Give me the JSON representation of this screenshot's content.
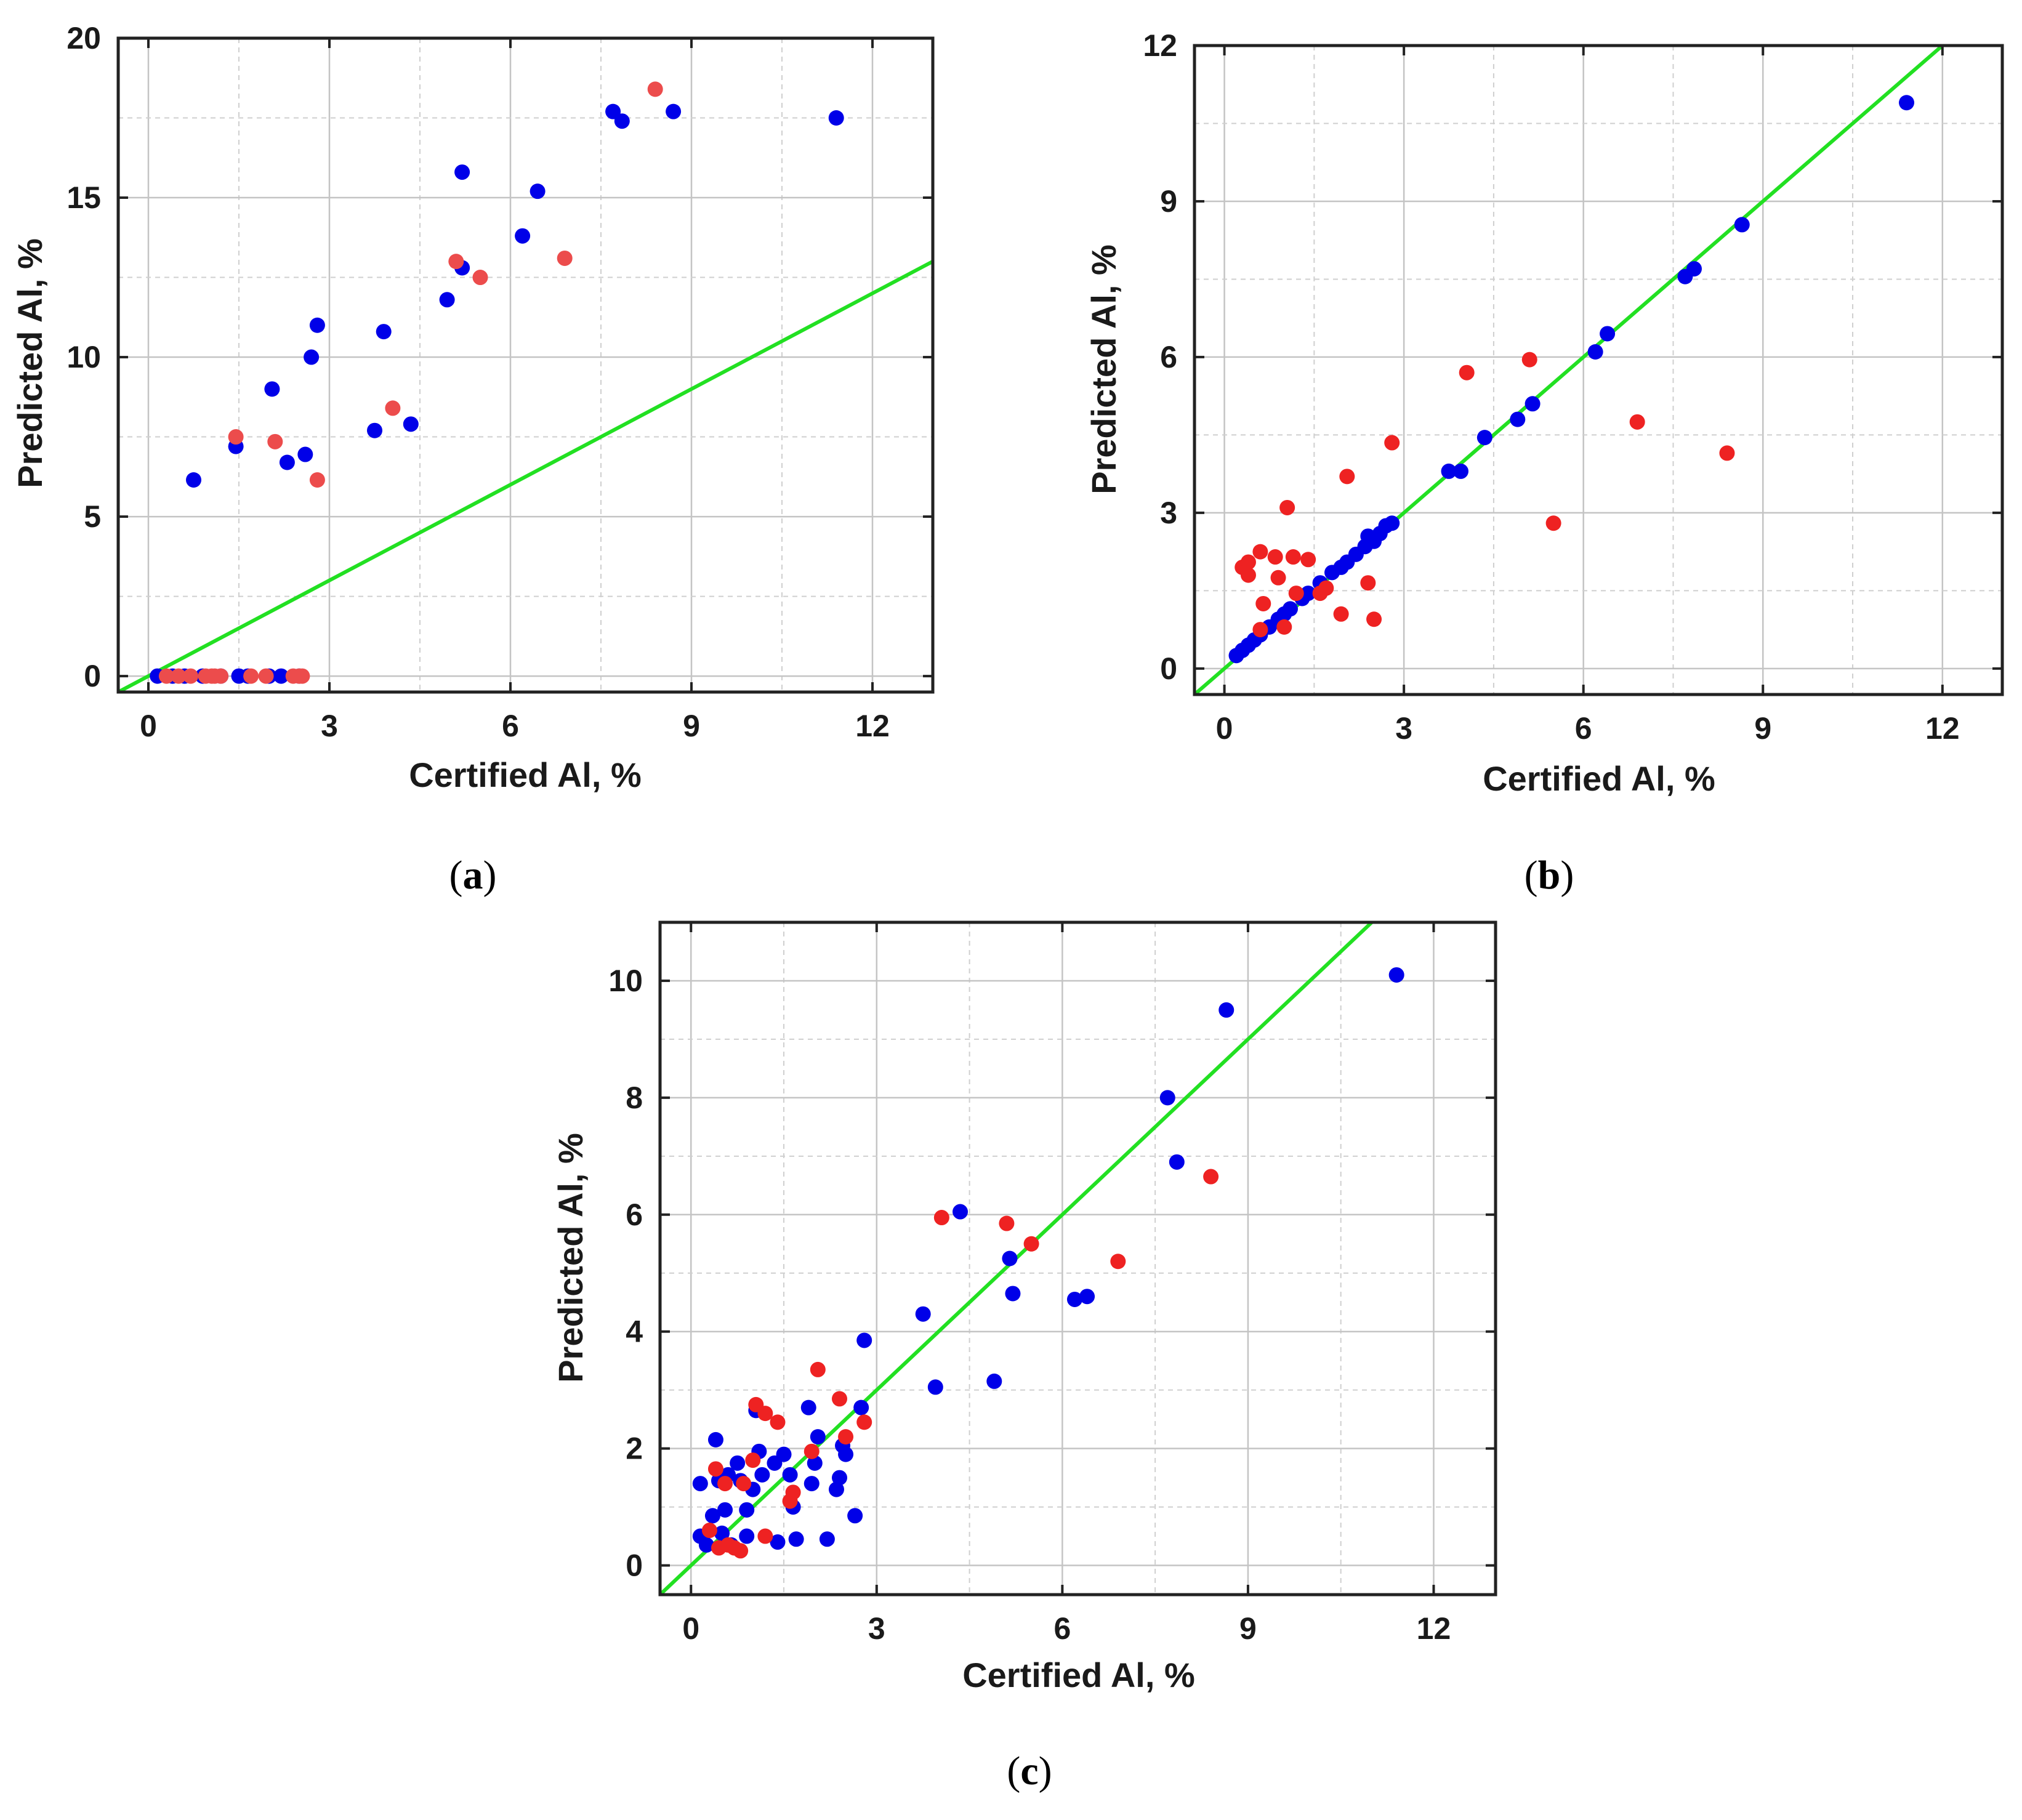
{
  "colors": {
    "blue": "#0000e8",
    "red": "#ee2222",
    "redSoft": "#ec4c4c",
    "line": "#22e022"
  },
  "chart_data": [
    {
      "panel": "a",
      "type": "scatter",
      "xlabel": "Certified Al, %",
      "ylabel": "Predicted Al, %",
      "xlim": [
        -0.5,
        13
      ],
      "ylim": [
        -0.5,
        20
      ],
      "xticks": [
        0,
        3,
        6,
        9,
        12
      ],
      "yticks": [
        0,
        5,
        10,
        15,
        20
      ],
      "xtick_labels": [
        "0",
        "3",
        "6",
        "9",
        "12"
      ],
      "ytick_labels": [
        "0",
        "5",
        "10",
        "15",
        "20"
      ],
      "label": "a",
      "line": {
        "name": "y = x",
        "color": "#22e022",
        "from": [
          -0.5,
          -0.5
        ],
        "to": [
          13,
          13
        ]
      },
      "series": [
        {
          "name": "blue",
          "color": "#0000e8",
          "points": [
            [
              0.75,
              6.15
            ],
            [
              1.45,
              7.2
            ],
            [
              2.05,
              9.0
            ],
            [
              2.3,
              6.7
            ],
            [
              2.6,
              6.95
            ],
            [
              2.7,
              10.0
            ],
            [
              2.8,
              11.0
            ],
            [
              3.75,
              7.7
            ],
            [
              3.9,
              10.8
            ],
            [
              4.35,
              7.9
            ],
            [
              4.95,
              11.8
            ],
            [
              5.2,
              12.8
            ],
            [
              5.2,
              15.8
            ],
            [
              6.2,
              13.8
            ],
            [
              6.45,
              15.2
            ],
            [
              7.7,
              17.7
            ],
            [
              7.85,
              17.4
            ],
            [
              8.7,
              17.7
            ],
            [
              11.4,
              17.5
            ],
            [
              0.15,
              0.0
            ],
            [
              0.4,
              0.0
            ],
            [
              0.6,
              0.0
            ],
            [
              0.9,
              0.0
            ],
            [
              1.2,
              0.0
            ],
            [
              1.5,
              0.0
            ],
            [
              1.65,
              0.0
            ],
            [
              2.0,
              0.0
            ],
            [
              2.2,
              0.0
            ],
            [
              2.5,
              0.0
            ]
          ]
        },
        {
          "name": "red",
          "color": "#ec4c4c",
          "points": [
            [
              1.45,
              7.5
            ],
            [
              2.1,
              7.35
            ],
            [
              2.8,
              6.15
            ],
            [
              4.05,
              8.4
            ],
            [
              5.1,
              13.0
            ],
            [
              5.5,
              12.5
            ],
            [
              6.9,
              13.1
            ],
            [
              8.4,
              18.4
            ],
            [
              0.3,
              0.0
            ],
            [
              0.5,
              0.0
            ],
            [
              0.7,
              0.0
            ],
            [
              0.95,
              0.0
            ],
            [
              1.05,
              0.0
            ],
            [
              1.1,
              0.0
            ],
            [
              1.2,
              0.0
            ],
            [
              1.7,
              0.0
            ],
            [
              1.95,
              0.0
            ],
            [
              2.4,
              0.0
            ],
            [
              2.5,
              0.0
            ],
            [
              2.55,
              0.0
            ]
          ]
        }
      ]
    },
    {
      "panel": "b",
      "type": "scatter",
      "xlabel": "Certified Al, %",
      "ylabel": "Predicted Al, %",
      "xlim": [
        -0.5,
        13
      ],
      "ylim": [
        -0.5,
        12
      ],
      "xticks": [
        0,
        3,
        6,
        9,
        12
      ],
      "yticks": [
        0,
        3,
        6,
        9,
        12
      ],
      "xtick_labels": [
        "0",
        "3",
        "6",
        "9",
        "12"
      ],
      "ytick_labels": [
        "0",
        "3",
        "6",
        "9",
        "12"
      ],
      "label": "b",
      "line": {
        "name": "y = x",
        "color": "#22e022",
        "from": [
          -0.5,
          -0.5
        ],
        "to": [
          12,
          12
        ]
      },
      "series": [
        {
          "name": "blue",
          "color": "#0000e8",
          "points": [
            [
              0.2,
              0.25
            ],
            [
              0.3,
              0.35
            ],
            [
              0.4,
              0.45
            ],
            [
              0.5,
              0.55
            ],
            [
              0.6,
              0.65
            ],
            [
              0.75,
              0.8
            ],
            [
              0.9,
              0.95
            ],
            [
              1.0,
              1.05
            ],
            [
              1.1,
              1.15
            ],
            [
              1.3,
              1.35
            ],
            [
              1.4,
              1.45
            ],
            [
              1.6,
              1.65
            ],
            [
              1.8,
              1.85
            ],
            [
              1.95,
              1.95
            ],
            [
              2.05,
              2.05
            ],
            [
              2.2,
              2.2
            ],
            [
              2.35,
              2.35
            ],
            [
              2.4,
              2.55
            ],
            [
              2.5,
              2.45
            ],
            [
              2.6,
              2.6
            ],
            [
              2.7,
              2.75
            ],
            [
              2.8,
              2.8
            ],
            [
              3.75,
              3.8
            ],
            [
              3.95,
              3.8
            ],
            [
              4.35,
              4.45
            ],
            [
              4.9,
              4.8
            ],
            [
              5.15,
              5.1
            ],
            [
              6.2,
              6.1
            ],
            [
              6.4,
              6.45
            ],
            [
              7.7,
              7.55
            ],
            [
              7.85,
              7.7
            ],
            [
              8.65,
              8.55
            ],
            [
              11.4,
              10.9
            ]
          ]
        },
        {
          "name": "red",
          "color": "#ee2222",
          "points": [
            [
              0.3,
              1.95
            ],
            [
              0.4,
              2.05
            ],
            [
              0.4,
              1.8
            ],
            [
              0.6,
              2.25
            ],
            [
              0.6,
              0.75
            ],
            [
              0.65,
              1.25
            ],
            [
              0.85,
              2.15
            ],
            [
              0.9,
              1.75
            ],
            [
              1.0,
              0.8
            ],
            [
              1.05,
              3.1
            ],
            [
              1.15,
              2.15
            ],
            [
              1.2,
              1.45
            ],
            [
              1.4,
              2.1
            ],
            [
              1.6,
              1.45
            ],
            [
              1.7,
              1.55
            ],
            [
              1.95,
              1.05
            ],
            [
              2.05,
              3.7
            ],
            [
              2.4,
              1.65
            ],
            [
              2.5,
              0.95
            ],
            [
              2.8,
              4.35
            ],
            [
              4.05,
              5.7
            ],
            [
              5.1,
              5.95
            ],
            [
              5.5,
              2.8
            ],
            [
              6.9,
              4.75
            ],
            [
              8.4,
              4.15
            ]
          ]
        }
      ]
    },
    {
      "panel": "c",
      "type": "scatter",
      "xlabel": "Certified Al, %",
      "ylabel": "Predicted Al, %",
      "xlim": [
        -0.5,
        13
      ],
      "ylim": [
        -0.5,
        11
      ],
      "xticks": [
        0,
        3,
        6,
        9,
        12
      ],
      "yticks": [
        0,
        2,
        4,
        6,
        8,
        10
      ],
      "xtick_labels": [
        "0",
        "3",
        "6",
        "9",
        "12"
      ],
      "ytick_labels": [
        "0",
        "2",
        "4",
        "6",
        "8",
        "10"
      ],
      "label": "c",
      "line": {
        "name": "y = x",
        "color": "#22e022",
        "from": [
          -0.5,
          -0.5
        ],
        "to": [
          11,
          11
        ]
      },
      "series": [
        {
          "name": "blue",
          "color": "#0000e8",
          "points": [
            [
              0.15,
              1.4
            ],
            [
              0.15,
              0.5
            ],
            [
              0.25,
              0.35
            ],
            [
              0.35,
              0.85
            ],
            [
              0.4,
              2.15
            ],
            [
              0.45,
              1.45
            ],
            [
              0.5,
              0.55
            ],
            [
              0.55,
              0.95
            ],
            [
              0.6,
              1.55
            ],
            [
              0.65,
              0.35
            ],
            [
              0.75,
              1.75
            ],
            [
              0.8,
              1.45
            ],
            [
              0.9,
              0.5
            ],
            [
              0.9,
              0.95
            ],
            [
              1.0,
              1.3
            ],
            [
              1.05,
              2.65
            ],
            [
              1.1,
              1.95
            ],
            [
              1.15,
              1.55
            ],
            [
              1.35,
              1.75
            ],
            [
              1.4,
              0.4
            ],
            [
              1.5,
              1.9
            ],
            [
              1.6,
              1.55
            ],
            [
              1.65,
              1.0
            ],
            [
              1.7,
              0.45
            ],
            [
              1.9,
              2.7
            ],
            [
              1.95,
              1.4
            ],
            [
              2.0,
              1.75
            ],
            [
              2.05,
              2.2
            ],
            [
              2.2,
              0.45
            ],
            [
              2.35,
              1.3
            ],
            [
              2.4,
              1.5
            ],
            [
              2.45,
              2.05
            ],
            [
              2.5,
              1.9
            ],
            [
              2.65,
              0.85
            ],
            [
              2.75,
              2.7
            ],
            [
              2.8,
              3.85
            ],
            [
              3.75,
              4.3
            ],
            [
              3.95,
              3.05
            ],
            [
              4.35,
              6.05
            ],
            [
              4.9,
              3.15
            ],
            [
              5.15,
              5.25
            ],
            [
              5.2,
              4.65
            ],
            [
              6.2,
              4.55
            ],
            [
              6.4,
              4.6
            ],
            [
              7.7,
              8.0
            ],
            [
              7.85,
              6.9
            ],
            [
              8.65,
              9.5
            ],
            [
              11.4,
              10.1
            ]
          ]
        },
        {
          "name": "red",
          "color": "#ee2222",
          "points": [
            [
              0.3,
              0.6
            ],
            [
              0.4,
              1.65
            ],
            [
              0.45,
              0.3
            ],
            [
              0.55,
              1.4
            ],
            [
              0.6,
              0.35
            ],
            [
              0.7,
              0.3
            ],
            [
              0.8,
              0.25
            ],
            [
              0.85,
              1.4
            ],
            [
              1.0,
              1.8
            ],
            [
              1.05,
              2.75
            ],
            [
              1.2,
              2.6
            ],
            [
              1.2,
              0.5
            ],
            [
              1.4,
              2.45
            ],
            [
              1.6,
              1.1
            ],
            [
              1.65,
              1.25
            ],
            [
              1.95,
              1.95
            ],
            [
              2.05,
              3.35
            ],
            [
              2.4,
              2.85
            ],
            [
              2.5,
              2.2
            ],
            [
              2.8,
              2.45
            ],
            [
              4.05,
              5.95
            ],
            [
              5.1,
              5.85
            ],
            [
              5.5,
              5.5
            ],
            [
              6.9,
              5.2
            ],
            [
              8.4,
              6.65
            ]
          ]
        }
      ]
    }
  ]
}
